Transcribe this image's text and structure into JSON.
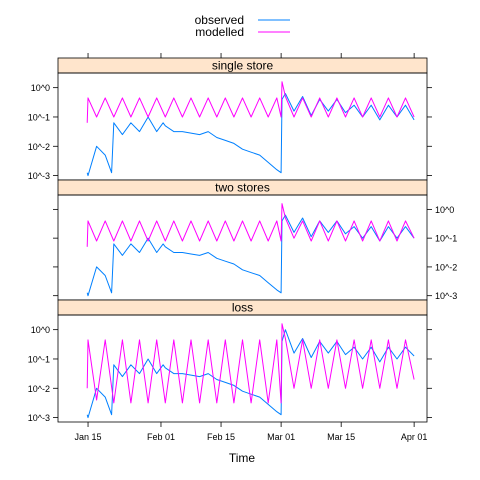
{
  "chart_data": {
    "type": "line",
    "title": "",
    "xlabel": "Time",
    "ylabel": "",
    "layout": "three stacked panels sharing the x-axis",
    "legend": {
      "placement": "top-center",
      "entries": [
        {
          "label": "observed",
          "color": "#0080ff"
        },
        {
          "label": "modelled",
          "color": "#ff00ff"
        }
      ]
    },
    "strip_color": "#ffe5cc",
    "x_ticks": [
      "Jan 15",
      "Feb 01",
      "Feb 15",
      "Mar 01",
      "Mar 15",
      "Apr 01"
    ],
    "x_tick_days": [
      14,
      31,
      45,
      59,
      73,
      90
    ],
    "xlim_days": [
      7,
      93
    ],
    "y_scale": "log10",
    "y_ticks": [
      "10^0",
      "10^-1",
      "10^-2",
      "10^-3"
    ],
    "y_tick_values": [
      0,
      -1,
      -2,
      -3
    ],
    "ylim_log10": [
      -3.15,
      0.5
    ],
    "panels": [
      {
        "name": "single store",
        "y_axis_side": "left",
        "series": [
          {
            "name": "observed",
            "color": "#0080ff",
            "x": [
              13.8,
              14,
              16,
              18,
              19.5,
              20,
              22,
              24,
              26,
              28,
              30,
              31.5,
              32,
              34,
              36,
              38,
              40,
              42,
              44,
              46,
              48,
              50,
              52,
              54,
              56,
              58,
              59,
              59.2,
              60,
              62,
              64,
              66,
              68,
              70,
              72,
              74,
              76,
              78,
              80,
              82,
              84,
              86,
              88,
              90
            ],
            "y": [
              -2.9,
              -3.0,
              -2.0,
              -2.3,
              -2.9,
              -1.2,
              -1.6,
              -1.2,
              -1.5,
              -1.0,
              -1.5,
              -1.2,
              -1.3,
              -1.5,
              -1.5,
              -1.55,
              -1.6,
              -1.5,
              -1.7,
              -1.8,
              -1.9,
              -2.1,
              -2.2,
              -2.3,
              -2.55,
              -2.8,
              -2.9,
              -0.4,
              -0.2,
              -0.8,
              -0.3,
              -0.95,
              -0.4,
              -0.8,
              -0.4,
              -0.85,
              -0.6,
              -1.0,
              -0.6,
              -1.1,
              -0.6,
              -1.0,
              -0.6,
              -1.1
            ]
          },
          {
            "name": "modelled",
            "color": "#ff00ff",
            "x": [
              13.8,
              14,
              16,
              18,
              20,
              22,
              24,
              26,
              28,
              30,
              32,
              34,
              36,
              38,
              40,
              42,
              44,
              46,
              48,
              50,
              52,
              54,
              56,
              58,
              59,
              59.2,
              60,
              62,
              64,
              66,
              68,
              70,
              72,
              74,
              76,
              78,
              80,
              82,
              84,
              86,
              88,
              90
            ],
            "y": [
              -1.2,
              -0.35,
              -1.0,
              -0.35,
              -1.0,
              -0.35,
              -1.0,
              -0.35,
              -1.0,
              -0.35,
              -1.0,
              -0.35,
              -1.0,
              -0.35,
              -1.0,
              -0.35,
              -1.0,
              -0.35,
              -1.0,
              -0.35,
              -1.0,
              -0.35,
              -1.0,
              -0.35,
              -1.0,
              0.2,
              -0.3,
              -1.0,
              -0.35,
              -1.0,
              -0.35,
              -1.0,
              -0.35,
              -1.0,
              -0.35,
              -1.0,
              -0.35,
              -1.0,
              -0.35,
              -1.0,
              -0.35,
              -1.0
            ]
          }
        ]
      },
      {
        "name": "two stores",
        "y_axis_side": "right",
        "series": [
          {
            "name": "observed",
            "color": "#0080ff",
            "x": [
              13.8,
              14,
              16,
              18,
              19.5,
              20,
              22,
              24,
              26,
              28,
              30,
              31.5,
              32,
              34,
              36,
              38,
              40,
              42,
              44,
              46,
              48,
              50,
              52,
              54,
              56,
              58,
              59,
              59.2,
              60,
              62,
              64,
              66,
              68,
              70,
              72,
              74,
              76,
              78,
              80,
              82,
              84,
              86,
              88,
              90
            ],
            "y": [
              -2.9,
              -3.0,
              -2.0,
              -2.3,
              -2.9,
              -1.2,
              -1.6,
              -1.2,
              -1.5,
              -1.0,
              -1.5,
              -1.2,
              -1.3,
              -1.5,
              -1.5,
              -1.55,
              -1.6,
              -1.5,
              -1.7,
              -1.8,
              -1.9,
              -2.1,
              -2.2,
              -2.3,
              -2.55,
              -2.8,
              -2.9,
              -0.4,
              -0.2,
              -0.8,
              -0.3,
              -0.95,
              -0.4,
              -0.8,
              -0.4,
              -0.85,
              -0.6,
              -1.0,
              -0.6,
              -1.1,
              -0.6,
              -1.0,
              -0.6,
              -1.0
            ]
          },
          {
            "name": "modelled",
            "color": "#ff00ff",
            "x": [
              13.8,
              14,
              16,
              18,
              20,
              22,
              24,
              26,
              28,
              30,
              32,
              34,
              36,
              38,
              40,
              42,
              44,
              46,
              48,
              50,
              52,
              54,
              56,
              58,
              59,
              59.2,
              60,
              62,
              64,
              66,
              68,
              70,
              72,
              74,
              76,
              78,
              80,
              82,
              84,
              86,
              88,
              90
            ],
            "y": [
              -1.3,
              -0.4,
              -1.1,
              -0.4,
              -1.1,
              -0.4,
              -1.1,
              -0.4,
              -1.1,
              -0.4,
              -1.1,
              -0.4,
              -1.1,
              -0.4,
              -1.1,
              -0.4,
              -1.1,
              -0.4,
              -1.1,
              -0.4,
              -1.1,
              -0.4,
              -1.1,
              -0.4,
              -1.1,
              0.2,
              -0.3,
              -1.0,
              -0.4,
              -1.1,
              -0.4,
              -1.1,
              -0.4,
              -1.1,
              -0.4,
              -1.1,
              -0.4,
              -1.1,
              -0.4,
              -1.1,
              -0.4,
              -1.0
            ]
          }
        ]
      },
      {
        "name": "loss",
        "y_axis_side": "left",
        "series": [
          {
            "name": "observed",
            "color": "#0080ff",
            "x": [
              13.8,
              14,
              16,
              18,
              19.5,
              20,
              22,
              24,
              26,
              28,
              30,
              31.5,
              32,
              34,
              36,
              38,
              40,
              42,
              44,
              46,
              48,
              50,
              52,
              54,
              56,
              58,
              59,
              59.2,
              60,
              62,
              64,
              66,
              68,
              70,
              72,
              74,
              76,
              78,
              80,
              82,
              84,
              86,
              88,
              90
            ],
            "y": [
              -2.9,
              -3.0,
              -2.0,
              -2.3,
              -2.9,
              -1.2,
              -1.6,
              -1.2,
              -1.5,
              -1.0,
              -1.5,
              -1.2,
              -1.3,
              -1.5,
              -1.5,
              -1.55,
              -1.6,
              -1.5,
              -1.7,
              -1.8,
              -1.9,
              -2.1,
              -2.2,
              -2.3,
              -2.55,
              -2.8,
              -2.9,
              -0.4,
              0.0,
              -0.8,
              -0.3,
              -0.95,
              -0.4,
              -0.8,
              -0.4,
              -0.85,
              -0.6,
              -1.0,
              -0.6,
              -1.1,
              -0.6,
              -1.0,
              -0.6,
              -0.9
            ]
          },
          {
            "name": "modelled",
            "color": "#ff00ff",
            "x": [
              13.8,
              14,
              16,
              18,
              20,
              22,
              24,
              26,
              28,
              30,
              32,
              34,
              36,
              38,
              40,
              42,
              44,
              46,
              48,
              50,
              52,
              54,
              56,
              58,
              59,
              59.2,
              60,
              62,
              64,
              66,
              68,
              70,
              72,
              74,
              76,
              78,
              80,
              82,
              84,
              86,
              88,
              90
            ],
            "y": [
              -2.0,
              -0.35,
              -2.4,
              -0.35,
              -2.5,
              -0.35,
              -2.5,
              -0.35,
              -2.5,
              -0.35,
              -2.5,
              -0.35,
              -2.5,
              -0.35,
              -2.5,
              -0.35,
              -2.5,
              -0.35,
              -2.5,
              -0.35,
              -2.5,
              -0.35,
              -2.5,
              -0.35,
              -2.5,
              0.2,
              -0.3,
              -2.0,
              -0.35,
              -2.0,
              -0.35,
              -2.0,
              -0.35,
              -2.0,
              -0.35,
              -2.0,
              -0.35,
              -2.0,
              -0.35,
              -2.0,
              -0.35,
              -1.7
            ]
          }
        ]
      }
    ]
  }
}
